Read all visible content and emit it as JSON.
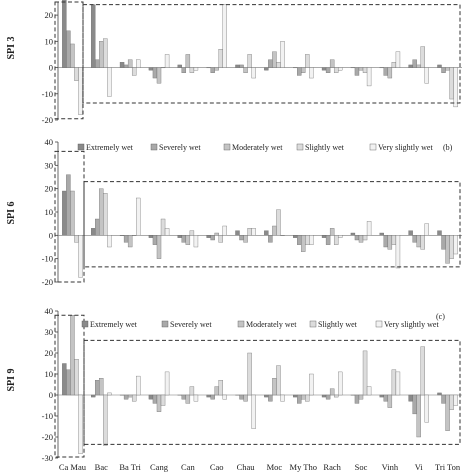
{
  "colors": {
    "extremely_wet": "#8a8a8a",
    "severely_wet": "#a9a9a9",
    "moderately_wet": "#c4c4c4",
    "slightly_wet": "#dcdcdc",
    "very_slightly_wet": "#f2f2f2"
  },
  "chart_data": [
    {
      "type": "bar",
      "ylabel": "SPI 3",
      "panel_label": "",
      "ylim": [
        -20,
        25
      ],
      "ticks": [
        -20,
        -10,
        0,
        10,
        20
      ],
      "categories": [
        "Ca Mau",
        "Bac",
        "Ba Tri",
        "Cang",
        "Can",
        "Cao",
        "Chau",
        "Moc",
        "My Tho",
        "Rach",
        "Soc",
        "Vinh",
        "Vi",
        "Tri Ton"
      ],
      "series": [
        {
          "name": "Extremely wet",
          "values": [
            27,
            24,
            2,
            -1,
            1,
            0,
            1,
            -1,
            0,
            -1,
            0,
            0,
            1,
            1
          ]
        },
        {
          "name": "Severely wet",
          "values": [
            14,
            3,
            1,
            -4,
            -2,
            -2,
            1,
            3,
            -3,
            -2,
            -3,
            -3,
            3,
            -2
          ]
        },
        {
          "name": "Moderately wet",
          "values": [
            9,
            10,
            3,
            -6,
            5,
            -1,
            -2,
            6,
            -2,
            3,
            -1,
            -4,
            1,
            -1
          ]
        },
        {
          "name": "Slightly wet",
          "values": [
            -5,
            11,
            -3,
            0,
            -2,
            7,
            5,
            2,
            5,
            -2,
            -2,
            2,
            8,
            -12
          ]
        },
        {
          "name": "Very slightly wet",
          "values": [
            -18,
            -11,
            3,
            5,
            -1,
            24,
            -4,
            10,
            -4,
            -1,
            -7,
            6,
            -6,
            -15
          ]
        }
      ]
    },
    {
      "type": "bar",
      "ylabel": "SPI 6",
      "panel_label": "(b)",
      "ylim": [
        -20,
        40
      ],
      "ticks": [
        -20,
        -10,
        0,
        10,
        20,
        30,
        40
      ],
      "categories": [
        "Ca Mau",
        "Bac",
        "Ba Tri",
        "Cang",
        "Can",
        "Cao",
        "Chau",
        "Moc",
        "My Tho",
        "Rach",
        "Soc",
        "Vinh",
        "Vi",
        "Tri Ton"
      ],
      "series": [
        {
          "name": "Extremely wet",
          "values": [
            19,
            3,
            0,
            -1,
            -1,
            -1,
            2,
            2,
            -1,
            -1,
            1,
            1,
            2,
            2
          ]
        },
        {
          "name": "Severely wet",
          "values": [
            26,
            7,
            -3,
            -4,
            -3,
            -2,
            -2,
            -3,
            -4,
            -4,
            -2,
            -5,
            -3,
            -6
          ]
        },
        {
          "name": "Moderately wet",
          "values": [
            19,
            20,
            -5,
            -10,
            -4,
            1,
            -3,
            4,
            -7,
            3,
            -3,
            -6,
            -5,
            -12
          ]
        },
        {
          "name": "Slightly wet",
          "values": [
            -3,
            18,
            0,
            7,
            2,
            -3,
            3,
            11,
            -4,
            -4,
            -2,
            -4,
            -6,
            -10
          ]
        },
        {
          "name": "Very slightly wet",
          "values": [
            -18,
            -5,
            16,
            3,
            -5,
            4,
            3,
            0,
            -4,
            -1,
            6,
            -14,
            5,
            -8
          ]
        }
      ],
      "legend": [
        "Extremely wet",
        "Severely wet",
        "Moderately wet",
        "Slightly wet",
        "Very slightly wet"
      ]
    },
    {
      "type": "bar",
      "ylabel": "SPI 9",
      "panel_label": "(c)",
      "ylim": [
        -30,
        40
      ],
      "ticks": [
        -30,
        -20,
        -10,
        0,
        10,
        20,
        30,
        40
      ],
      "categories": [
        "Ca Mau",
        "Bac",
        "Ba Tri",
        "Cang",
        "Can",
        "Cao",
        "Chau",
        "Moc",
        "My Tho",
        "Rach",
        "Soc",
        "Vinh",
        "Vi",
        "Tri Ton"
      ],
      "series": [
        {
          "name": "Extremely wet",
          "values": [
            15,
            -1,
            0,
            -2,
            0,
            -1,
            0,
            -1,
            -1,
            -1,
            0,
            -1,
            -3,
            1
          ]
        },
        {
          "name": "Severely wet",
          "values": [
            12,
            7,
            -2,
            -4,
            -2,
            -2,
            -2,
            -3,
            -4,
            -2,
            -4,
            -3,
            -9,
            -4
          ]
        },
        {
          "name": "Moderately wet",
          "values": [
            38,
            8,
            -1,
            -8,
            -4,
            4,
            -3,
            8,
            -2,
            3,
            -2,
            -6,
            -20,
            -17
          ]
        },
        {
          "name": "Slightly wet",
          "values": [
            17,
            -24,
            -3,
            -5,
            4,
            7,
            20,
            14,
            -3,
            -1,
            21,
            12,
            23,
            -7
          ]
        },
        {
          "name": "Very slightly wet",
          "values": [
            -28,
            1,
            9,
            11,
            -3,
            -2,
            -16,
            -3,
            10,
            11,
            4,
            11,
            -13,
            -5
          ]
        }
      ],
      "legend": [
        "Extremely wet",
        "Severely wet",
        "Moderately wet",
        "Slightly wet",
        "Very slightly wet"
      ]
    }
  ]
}
